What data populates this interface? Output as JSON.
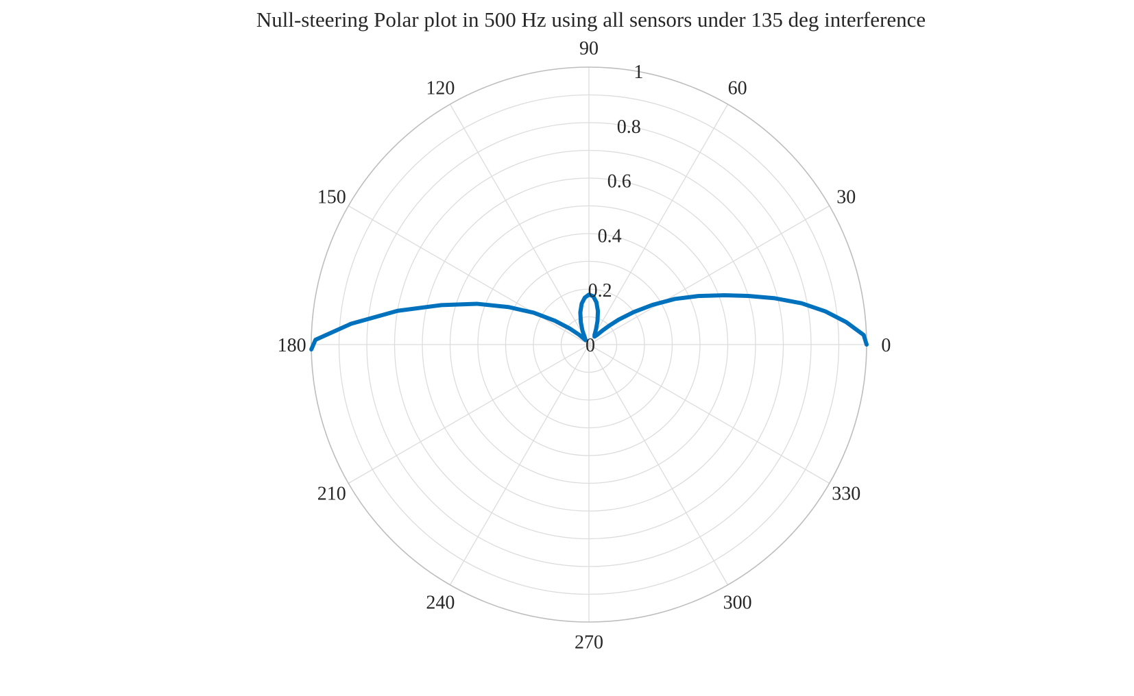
{
  "chart_data": {
    "type": "polar-line",
    "title": "Null-steering Polar plot in 500 Hz using all sensors under 135 deg interference",
    "r_ticks": [
      "0",
      "0.2",
      "0.4",
      "0.6",
      "0.8",
      "1"
    ],
    "r_tick_values": [
      0,
      0.2,
      0.4,
      0.6,
      0.8,
      1
    ],
    "r_lim": [
      0,
      1
    ],
    "theta_ticks": [
      "0",
      "30",
      "60",
      "90",
      "120",
      "150",
      "180",
      "210",
      "240",
      "270",
      "300",
      "330"
    ],
    "theta_tick_values": [
      0,
      30,
      60,
      90,
      120,
      150,
      180,
      210,
      240,
      270,
      300,
      330
    ],
    "grid": true,
    "series": [
      {
        "color": "#0072BD",
        "points": [
          [
            0,
            1.0
          ],
          [
            2,
            0.99
          ],
          [
            5,
            0.93
          ],
          [
            8,
            0.86
          ],
          [
            11,
            0.78
          ],
          [
            14,
            0.69
          ],
          [
            17,
            0.6
          ],
          [
            20,
            0.52
          ],
          [
            24,
            0.43
          ],
          [
            28,
            0.35
          ],
          [
            32,
            0.27
          ],
          [
            36,
            0.2
          ],
          [
            40,
            0.14
          ],
          [
            43,
            0.1
          ],
          [
            46,
            0.07
          ],
          [
            50,
            0.045
          ],
          [
            55,
            0.035
          ],
          [
            60,
            0.04
          ],
          [
            65,
            0.06
          ],
          [
            70,
            0.09
          ],
          [
            75,
            0.125
          ],
          [
            80,
            0.155
          ],
          [
            85,
            0.175
          ],
          [
            90,
            0.18
          ],
          [
            95,
            0.17
          ],
          [
            100,
            0.15
          ],
          [
            105,
            0.12
          ],
          [
            110,
            0.085
          ],
          [
            115,
            0.055
          ],
          [
            120,
            0.03
          ],
          [
            127,
            0.02
          ],
          [
            135,
            0.05
          ],
          [
            140,
            0.09
          ],
          [
            145,
            0.15
          ],
          [
            150,
            0.23
          ],
          [
            155,
            0.32
          ],
          [
            160,
            0.43
          ],
          [
            165,
            0.55
          ],
          [
            170,
            0.7
          ],
          [
            175,
            0.86
          ],
          [
            179,
            0.985
          ],
          [
            181,
            1.0
          ]
        ]
      }
    ]
  }
}
